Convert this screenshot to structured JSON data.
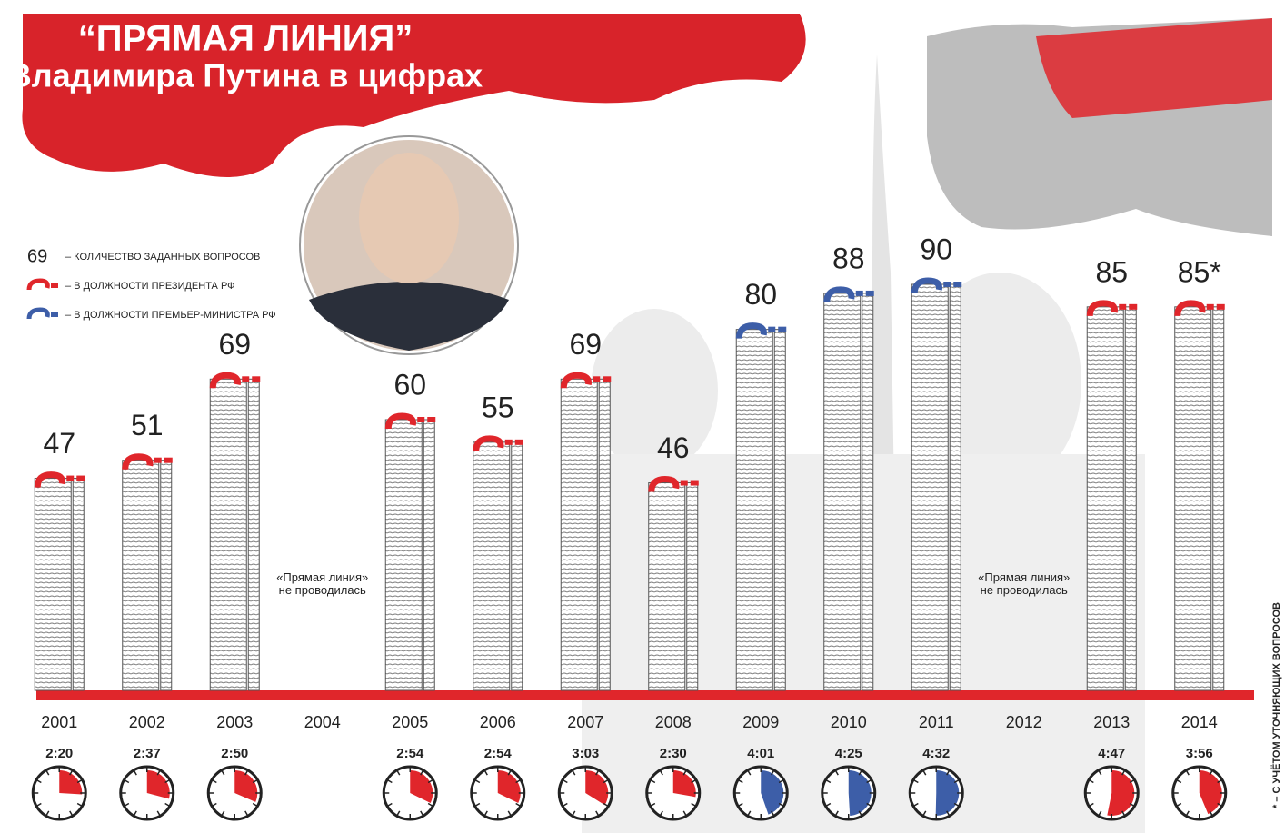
{
  "chart_data": {
    "type": "bar",
    "title": "“ПРЯМАЯ ЛИНИЯ”",
    "subtitle": "Владимира Путина в цифрах",
    "categories": [
      "2001",
      "2002",
      "2003",
      "2004",
      "2005",
      "2006",
      "2007",
      "2008",
      "2009",
      "2010",
      "2011",
      "2012",
      "2013",
      "2014"
    ],
    "values": [
      47,
      51,
      69,
      null,
      60,
      55,
      69,
      46,
      80,
      88,
      90,
      null,
      85,
      85
    ],
    "value_labels": [
      "47",
      "51",
      "69",
      null,
      "60",
      "55",
      "69",
      "46",
      "80",
      "88",
      "90",
      null,
      "85",
      "85*"
    ],
    "colors": [
      "#e0262b",
      "#e0262b",
      "#e0262b",
      null,
      "#e0262b",
      "#e0262b",
      "#e0262b",
      "#e0262b",
      "#3d5ea8",
      "#3d5ea8",
      "#3d5ea8",
      null,
      "#e0262b",
      "#e0262b"
    ],
    "durations": [
      "2:20",
      "2:37",
      "2:50",
      null,
      "2:54",
      "2:54",
      "3:03",
      "2:30",
      "4:01",
      "4:25",
      "4:32",
      null,
      "4:47",
      "3:56"
    ],
    "notes": [
      null,
      null,
      null,
      "«Прямая линия» не проводилась",
      null,
      null,
      null,
      null,
      null,
      null,
      null,
      "«Прямая линия» не проводилась",
      null,
      null
    ],
    "ylim": [
      0,
      90
    ],
    "legend": [
      {
        "sample": "69",
        "label": "– КОЛИЧЕСТВО ЗАДАННЫХ ВОПРОСОВ"
      },
      {
        "color": "#e0262b",
        "label": "– В ДОЛЖНОСТИ ПРЕЗИДЕНТА РФ"
      },
      {
        "color": "#3d5ea8",
        "label": "– В ДОЛЖНОСТИ ПРЕМЬЕР-МИНИСТРА РФ"
      }
    ],
    "footnote": "* – С УЧЁТОМ УТОЧНЯЮЩИХ ВОПРОСОВ"
  }
}
